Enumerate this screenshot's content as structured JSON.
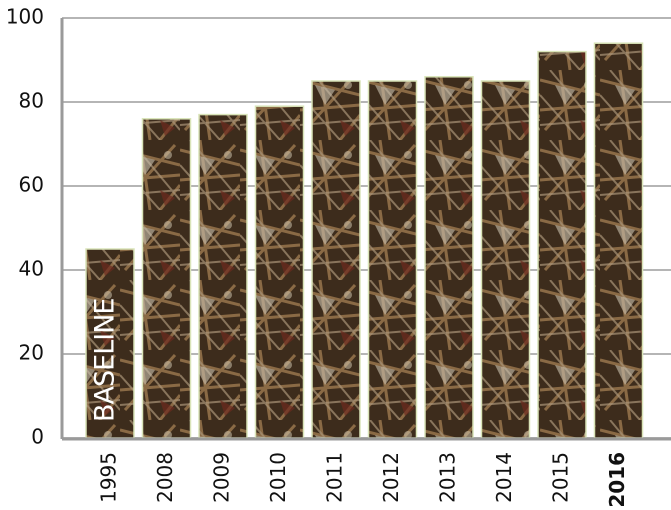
{
  "chart_data": {
    "type": "bar",
    "categories": [
      "1995",
      "2008",
      "2009",
      "2010",
      "2011",
      "2012",
      "2013",
      "2014",
      "2015",
      "2016"
    ],
    "values": [
      45,
      76,
      77,
      79,
      85,
      85,
      86,
      85,
      92,
      94
    ],
    "annotation": "BASELINE",
    "ylim": [
      0,
      100
    ],
    "yticks": [
      0,
      20,
      40,
      60,
      80,
      100
    ],
    "grid": true
  }
}
